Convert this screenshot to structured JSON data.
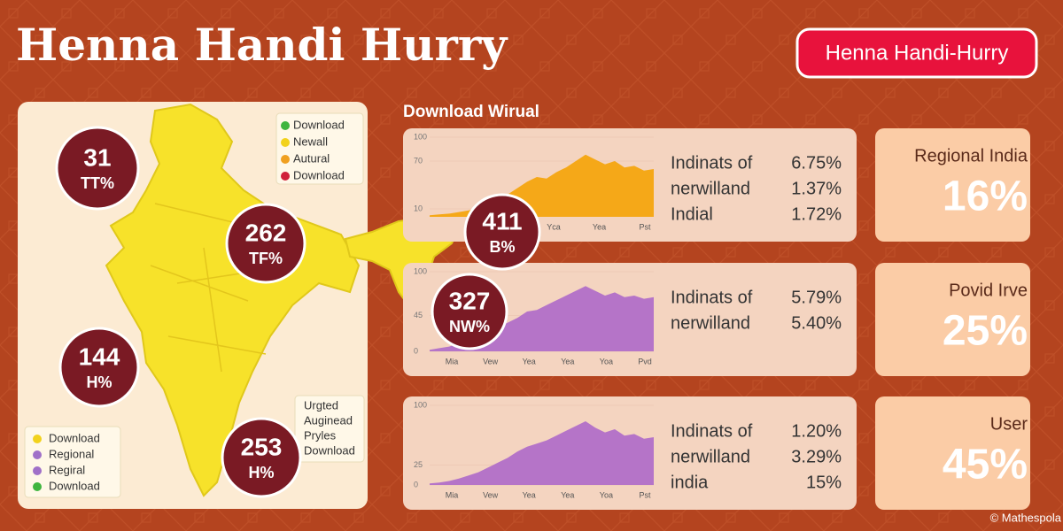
{
  "header": {
    "title": "Henna Handi Hurry",
    "badge": "Henna Handi-Hurry"
  },
  "map": {
    "legend_top": [
      {
        "label": "Download",
        "color": "#3fb53f"
      },
      {
        "label": "Newall",
        "color": "#f2d21c"
      },
      {
        "label": "Autural",
        "color": "#f0a020"
      },
      {
        "label": "Download",
        "color": "#d0203a"
      }
    ],
    "bubbles": [
      {
        "value": "31",
        "label": "TT%"
      },
      {
        "value": "262",
        "label": "TF%"
      },
      {
        "value": "144",
        "label": "H%"
      },
      {
        "value": "253",
        "label": "H%"
      },
      {
        "value": "411",
        "label": "B%"
      },
      {
        "value": "327",
        "label": "NW%"
      }
    ],
    "legend_bottom": [
      {
        "label": "Download",
        "color": "#f2d21c"
      },
      {
        "label": "Regional",
        "color": "#a070c8"
      },
      {
        "label": "Regiral",
        "color": "#a070c8"
      },
      {
        "label": "Download",
        "color": "#3fb53f"
      }
    ],
    "note": [
      "Urgted",
      "Auginead",
      "Pryles",
      "Download"
    ]
  },
  "section_title": "Download Wirual",
  "panels": [
    {
      "color": "#f5a818",
      "ylim": [
        0,
        100
      ],
      "yticks": [
        10,
        70,
        100
      ],
      "x_labels": [
        "Yca",
        "Yea",
        "Pst"
      ],
      "values": [
        2,
        3,
        4,
        6,
        8,
        12,
        18,
        24,
        28,
        36,
        44,
        50,
        48,
        56,
        62,
        70,
        78,
        72,
        66,
        70,
        62,
        64,
        58,
        60
      ],
      "stats": [
        {
          "name": "Indinats of",
          "value": "6.75%"
        },
        {
          "name": "nerwilland",
          "value": "1.37%"
        },
        {
          "name": "Indial",
          "value": "1.72%"
        }
      ]
    },
    {
      "color": "#b574c8",
      "ylim": [
        0,
        100
      ],
      "yticks": [
        0,
        45,
        100
      ],
      "x_labels": [
        "Mia",
        "Vew",
        "Yea",
        "Yea",
        "Yoa",
        "Pvd"
      ],
      "values": [
        2,
        4,
        6,
        10,
        14,
        18,
        24,
        30,
        36,
        42,
        50,
        52,
        58,
        64,
        70,
        76,
        82,
        76,
        70,
        74,
        68,
        70,
        66,
        68
      ],
      "stats": [
        {
          "name": "Indinats of",
          "value": "5.79%"
        },
        {
          "name": "nerwilland",
          "value": "5.40%"
        }
      ]
    },
    {
      "color": "#b574c8",
      "ylim": [
        0,
        100
      ],
      "yticks": [
        0,
        25,
        100
      ],
      "x_labels": [
        "Mia",
        "Vew",
        "Yea",
        "Yea",
        "Yoa",
        "Pst"
      ],
      "values": [
        2,
        3,
        5,
        8,
        12,
        16,
        22,
        28,
        34,
        42,
        48,
        52,
        56,
        62,
        68,
        74,
        80,
        72,
        66,
        70,
        62,
        64,
        58,
        60
      ],
      "stats": [
        {
          "name": "Indinats of",
          "value": "1.20%"
        },
        {
          "name": "nerwilland",
          "value": "3.29%"
        },
        {
          "name": "india",
          "value": "15%"
        }
      ]
    }
  ],
  "cards": [
    {
      "title": "Regional India",
      "value": "16%"
    },
    {
      "title": "Povid Irve",
      "value": "25%"
    },
    {
      "title": "User",
      "value": "45%"
    }
  ],
  "footer": "© Mathespola"
}
